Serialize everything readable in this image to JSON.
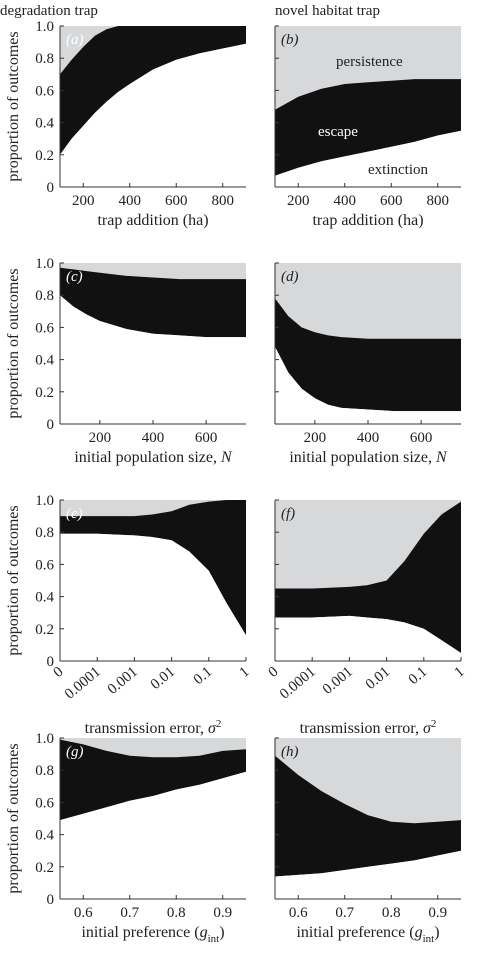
{
  "figure": {
    "column_titles": [
      "degradation trap",
      "novel habitat trap"
    ],
    "ylabel": "proportion of outcomes",
    "region_labels": {
      "persistence": "persistence",
      "escape": "escape",
      "extinction": "extinction"
    }
  },
  "colors": {
    "persistence": "#d7d8da",
    "escape": "#111111",
    "extinction": "#ffffff"
  },
  "chart_data": [
    {
      "type": "area",
      "panel": "(a)",
      "row": 0,
      "col": 0,
      "x_scale": "linear",
      "xlim": [
        100,
        900
      ],
      "ylim": [
        0,
        1
      ],
      "xticks": [
        200,
        400,
        600,
        800
      ],
      "xtick_labels": [
        "200",
        "400",
        "600",
        "800"
      ],
      "yticks": [
        0,
        0.2,
        0.4,
        0.6,
        0.8,
        1.0
      ],
      "ytick_labels": [
        "0",
        "0.2",
        "0.4",
        "0.6",
        "0.8",
        "1.0"
      ],
      "xlabel": "trap addition (ha)",
      "ylabel": "proportion of outcomes",
      "x": [
        100,
        150,
        200,
        250,
        300,
        350,
        400,
        500,
        600,
        700,
        800,
        900
      ],
      "series": [
        {
          "name": "extinction",
          "values": [
            0.2,
            0.3,
            0.38,
            0.46,
            0.53,
            0.59,
            0.64,
            0.73,
            0.79,
            0.83,
            0.86,
            0.89
          ]
        },
        {
          "name": "escape upper",
          "values": [
            0.7,
            0.79,
            0.87,
            0.94,
            0.98,
            1.0,
            1.0,
            1.0,
            1.0,
            1.0,
            1.0,
            1.0
          ]
        }
      ]
    },
    {
      "type": "area",
      "panel": "(b)",
      "row": 0,
      "col": 1,
      "x_scale": "linear",
      "xlim": [
        100,
        900
      ],
      "ylim": [
        0,
        1
      ],
      "xticks": [
        200,
        400,
        600,
        800
      ],
      "xtick_labels": [
        "200",
        "400",
        "600",
        "800"
      ],
      "yticks": [
        0,
        0.2,
        0.4,
        0.6,
        0.8,
        1.0
      ],
      "ytick_labels": [],
      "xlabel": "trap addition (ha)",
      "ylabel": "",
      "x": [
        100,
        200,
        300,
        400,
        500,
        600,
        700,
        800,
        900
      ],
      "series": [
        {
          "name": "extinction",
          "values": [
            0.07,
            0.12,
            0.16,
            0.19,
            0.22,
            0.25,
            0.28,
            0.32,
            0.35
          ]
        },
        {
          "name": "escape upper",
          "values": [
            0.48,
            0.56,
            0.61,
            0.64,
            0.65,
            0.66,
            0.67,
            0.67,
            0.67
          ]
        }
      ]
    },
    {
      "type": "area",
      "panel": "(c)",
      "row": 1,
      "col": 0,
      "x_scale": "linear",
      "xlim": [
        50,
        750
      ],
      "ylim": [
        0,
        1
      ],
      "xticks": [
        200,
        400,
        600
      ],
      "xtick_labels": [
        "200",
        "400",
        "600"
      ],
      "yticks": [
        0,
        0.2,
        0.4,
        0.6,
        0.8,
        1.0
      ],
      "ytick_labels": [
        "0",
        "0.2",
        "0.4",
        "0.6",
        "0.8",
        "1.0"
      ],
      "xlabel": "initial population size, N",
      "ylabel": "proportion of outcomes",
      "x": [
        50,
        100,
        150,
        200,
        300,
        400,
        500,
        600,
        750
      ],
      "series": [
        {
          "name": "extinction",
          "values": [
            0.8,
            0.73,
            0.68,
            0.64,
            0.59,
            0.56,
            0.55,
            0.54,
            0.54
          ]
        },
        {
          "name": "escape upper",
          "values": [
            0.97,
            0.96,
            0.95,
            0.94,
            0.92,
            0.91,
            0.9,
            0.9,
            0.9
          ]
        }
      ]
    },
    {
      "type": "area",
      "panel": "(d)",
      "row": 1,
      "col": 1,
      "x_scale": "linear",
      "xlim": [
        50,
        750
      ],
      "ylim": [
        0,
        1
      ],
      "xticks": [
        200,
        400,
        600
      ],
      "xtick_labels": [
        "200",
        "400",
        "600"
      ],
      "yticks": [
        0,
        0.2,
        0.4,
        0.6,
        0.8,
        1.0
      ],
      "ytick_labels": [],
      "xlabel": "initial population size, N",
      "ylabel": "",
      "x": [
        50,
        100,
        150,
        200,
        250,
        300,
        400,
        500,
        600,
        750
      ],
      "series": [
        {
          "name": "extinction",
          "values": [
            0.48,
            0.32,
            0.22,
            0.16,
            0.12,
            0.1,
            0.09,
            0.08,
            0.08,
            0.08
          ]
        },
        {
          "name": "escape upper",
          "values": [
            0.78,
            0.67,
            0.6,
            0.57,
            0.55,
            0.54,
            0.53,
            0.53,
            0.53,
            0.53
          ]
        }
      ]
    },
    {
      "type": "area",
      "panel": "(e)",
      "row": 2,
      "col": 0,
      "x_scale": "log-with-zero",
      "ylim": [
        0,
        1
      ],
      "categories": [
        "0",
        "0.0001",
        "0.001",
        "0.01",
        "0.1",
        "1"
      ],
      "yticks": [
        0,
        0.2,
        0.4,
        0.6,
        0.8,
        1.0
      ],
      "ytick_labels": [
        "0",
        "0.2",
        "0.4",
        "0.6",
        "0.8",
        "1.0"
      ],
      "xlabel": "transmission error, σ2",
      "ylabel": "proportion of outcomes",
      "x": [
        "0",
        "0.0001",
        "0.001",
        "0.003",
        "0.01",
        "0.03",
        "0.1",
        "0.3",
        "1"
      ],
      "series": [
        {
          "name": "extinction",
          "values": [
            0.79,
            0.79,
            0.78,
            0.77,
            0.75,
            0.68,
            0.56,
            0.36,
            0.16
          ]
        },
        {
          "name": "escape upper",
          "values": [
            0.9,
            0.9,
            0.9,
            0.91,
            0.93,
            0.97,
            0.99,
            1.0,
            1.0
          ]
        }
      ]
    },
    {
      "type": "area",
      "panel": "(f)",
      "row": 2,
      "col": 1,
      "x_scale": "log-with-zero",
      "ylim": [
        0,
        1
      ],
      "categories": [
        "0",
        "0.0001",
        "0.001",
        "0.01",
        "0.1",
        "1"
      ],
      "yticks": [
        0,
        0.2,
        0.4,
        0.6,
        0.8,
        1.0
      ],
      "ytick_labels": [],
      "xlabel": "transmission error, σ2",
      "ylabel": "",
      "x": [
        "0",
        "0.0001",
        "0.001",
        "0.003",
        "0.01",
        "0.03",
        "0.1",
        "0.3",
        "1"
      ],
      "series": [
        {
          "name": "extinction",
          "values": [
            0.27,
            0.27,
            0.28,
            0.27,
            0.26,
            0.24,
            0.2,
            0.13,
            0.05
          ]
        },
        {
          "name": "escape upper",
          "values": [
            0.45,
            0.45,
            0.46,
            0.47,
            0.5,
            0.62,
            0.79,
            0.91,
            0.99
          ]
        }
      ]
    },
    {
      "type": "area",
      "panel": "(g)",
      "row": 3,
      "col": 0,
      "x_scale": "linear",
      "xlim": [
        0.55,
        0.95
      ],
      "ylim": [
        0,
        1
      ],
      "xticks": [
        0.6,
        0.7,
        0.8,
        0.9
      ],
      "xtick_labels": [
        "0.6",
        "0.7",
        "0.8",
        "0.9"
      ],
      "yticks": [
        0,
        0.2,
        0.4,
        0.6,
        0.8,
        1.0
      ],
      "ytick_labels": [
        "0",
        "0.2",
        "0.4",
        "0.6",
        "0.8",
        "1.0"
      ],
      "xlabel": "initial preference (gint)",
      "ylabel": "proportion of outcomes",
      "x": [
        0.55,
        0.6,
        0.65,
        0.7,
        0.75,
        0.8,
        0.85,
        0.9,
        0.95
      ],
      "series": [
        {
          "name": "extinction",
          "values": [
            0.49,
            0.53,
            0.57,
            0.61,
            0.64,
            0.68,
            0.71,
            0.75,
            0.79
          ]
        },
        {
          "name": "escape upper",
          "values": [
            0.99,
            0.96,
            0.92,
            0.89,
            0.88,
            0.88,
            0.89,
            0.92,
            0.93
          ]
        }
      ]
    },
    {
      "type": "area",
      "panel": "(h)",
      "row": 3,
      "col": 1,
      "x_scale": "linear",
      "xlim": [
        0.55,
        0.95
      ],
      "ylim": [
        0,
        1
      ],
      "xticks": [
        0.6,
        0.7,
        0.8,
        0.9
      ],
      "xtick_labels": [
        "0.6",
        "0.7",
        "0.8",
        "0.9"
      ],
      "yticks": [
        0,
        0.2,
        0.4,
        0.6,
        0.8,
        1.0
      ],
      "ytick_labels": [],
      "xlabel": "initial preference (gint)",
      "ylabel": "",
      "x": [
        0.55,
        0.6,
        0.65,
        0.7,
        0.75,
        0.8,
        0.85,
        0.9,
        0.95
      ],
      "series": [
        {
          "name": "extinction",
          "values": [
            0.14,
            0.15,
            0.16,
            0.18,
            0.2,
            0.22,
            0.24,
            0.27,
            0.3
          ]
        },
        {
          "name": "escape upper",
          "values": [
            0.89,
            0.77,
            0.67,
            0.59,
            0.52,
            0.48,
            0.47,
            0.48,
            0.49
          ]
        }
      ]
    }
  ]
}
